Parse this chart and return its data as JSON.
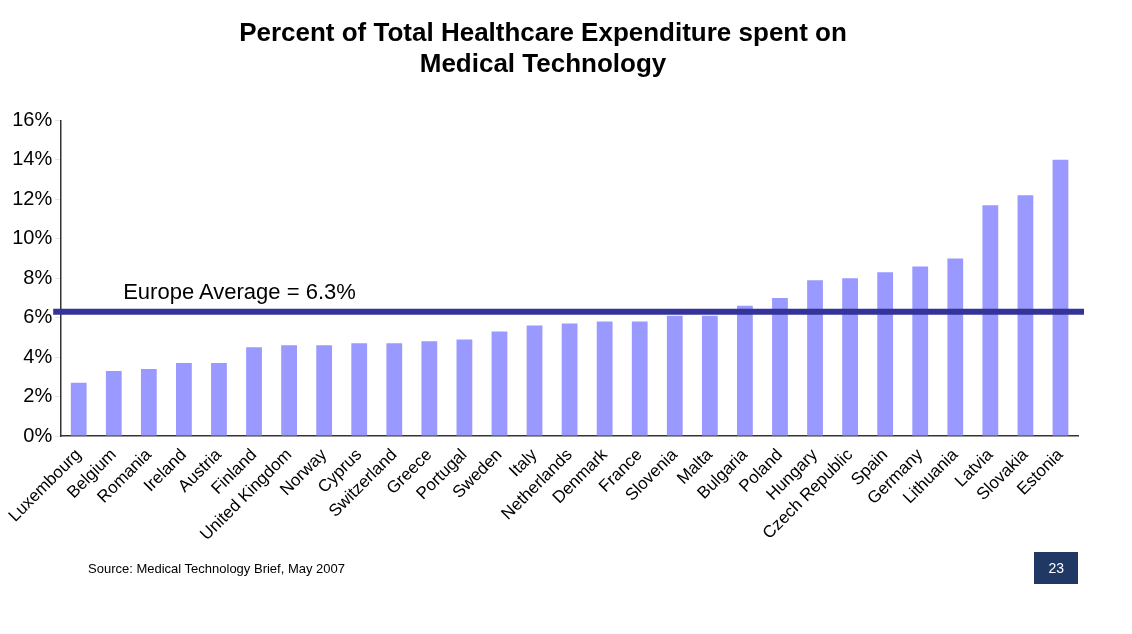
{
  "chart_data": {
    "type": "bar",
    "title": [
      "Percent of Total Healthcare Expenditure spent on",
      "Medical Technology"
    ],
    "categories": [
      "Luxembourg",
      "Belgium",
      "Romania",
      "Ireland",
      "Austria",
      "Finland",
      "United Kingdom",
      "Norway",
      "Cyprus",
      "Switzerland",
      "Greece",
      "Portugal",
      "Sweden",
      "Italy",
      "Netherlands",
      "Denmark",
      "France",
      "Slovenia",
      "Malta",
      "Bulgaria",
      "Poland",
      "Hungary",
      "Czech Republic",
      "Spain",
      "Germany",
      "Lithuania",
      "Latvia",
      "Slovakia",
      "Estonia"
    ],
    "values": [
      2.7,
      3.3,
      3.4,
      3.7,
      3.7,
      4.5,
      4.6,
      4.6,
      4.7,
      4.7,
      4.8,
      4.9,
      5.3,
      5.6,
      5.7,
      5.8,
      5.8,
      6.1,
      6.1,
      6.6,
      7.0,
      7.9,
      8.0,
      8.3,
      8.6,
      9.0,
      11.7,
      12.2,
      14.0
    ],
    "color": "#9999ff",
    "ylim": [
      0,
      16
    ],
    "yticks": [
      {
        "value": 0,
        "label": "0%"
      },
      {
        "value": 2,
        "label": "2%"
      },
      {
        "value": 4,
        "label": "4%"
      },
      {
        "value": 6,
        "label": "6%"
      },
      {
        "value": 8,
        "label": "8%"
      },
      {
        "value": 10,
        "label": "10%"
      },
      {
        "value": 12,
        "label": "12%"
      },
      {
        "value": 14,
        "label": "14%"
      },
      {
        "value": 16,
        "label": "16%"
      }
    ],
    "ref_lines": [
      {
        "axis": "y",
        "value": 6.3,
        "label": "Europe Average = 6.3%",
        "color": "#333399"
      }
    ],
    "grid": false,
    "legend": false,
    "annotations": [
      "Source: Medical Technology Brief, May 2007",
      "23"
    ]
  }
}
